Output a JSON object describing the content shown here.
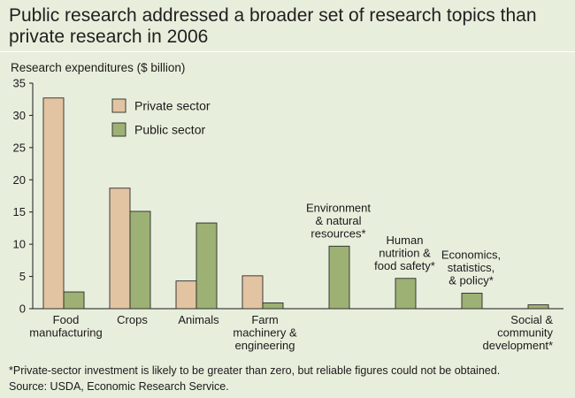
{
  "title": "Public research addressed a broader set of research topics than private research in 2006",
  "ylabel": "Research expenditures ($ billion)",
  "footnote": "*Private-sector investment is likely to be greater than zero, but reliable figures could not be obtained.",
  "source": "Source: USDA, Economic Research Service.",
  "colors": {
    "background": "#e8eedc",
    "private": "#e2c4a2",
    "public": "#9cb173",
    "outline": "#2a2a2a"
  },
  "chart_data": {
    "type": "bar",
    "title": "Public research addressed a broader set of research topics than private research in 2006",
    "xlabel": "",
    "ylabel": "Research expenditures ($ billion)",
    "ylim": [
      0,
      35
    ],
    "yticks": [
      0,
      5,
      10,
      15,
      20,
      25,
      30,
      35
    ],
    "grid": false,
    "legend_position": "top-left",
    "categories": [
      "Food manufacturing",
      "Crops",
      "Animals",
      "Farm machinery & engineering",
      "Environment & natural resources*",
      "Human nutrition & food safety*",
      "Economics, statistics, & policy*",
      "Social & community development*"
    ],
    "category_label_lines": [
      [
        "Food",
        "manufacturing"
      ],
      [
        "Crops"
      ],
      [
        "Animals"
      ],
      [
        "Farm",
        "machinery &",
        "engineering"
      ],
      [
        "Environment",
        "& natural",
        "resources*"
      ],
      [
        "Human",
        "nutrition &",
        "food safety*"
      ],
      [
        "Economics,",
        "statistics,",
        "& policy*"
      ],
      [
        "Social &",
        "community",
        "development*"
      ]
    ],
    "series": [
      {
        "name": "Private sector",
        "values": [
          32.7,
          18.7,
          4.3,
          5.1,
          0,
          0,
          0,
          0
        ]
      },
      {
        "name": "Public sector",
        "values": [
          2.6,
          15.1,
          13.3,
          0.9,
          9.7,
          4.7,
          2.4,
          0.6
        ]
      }
    ]
  }
}
